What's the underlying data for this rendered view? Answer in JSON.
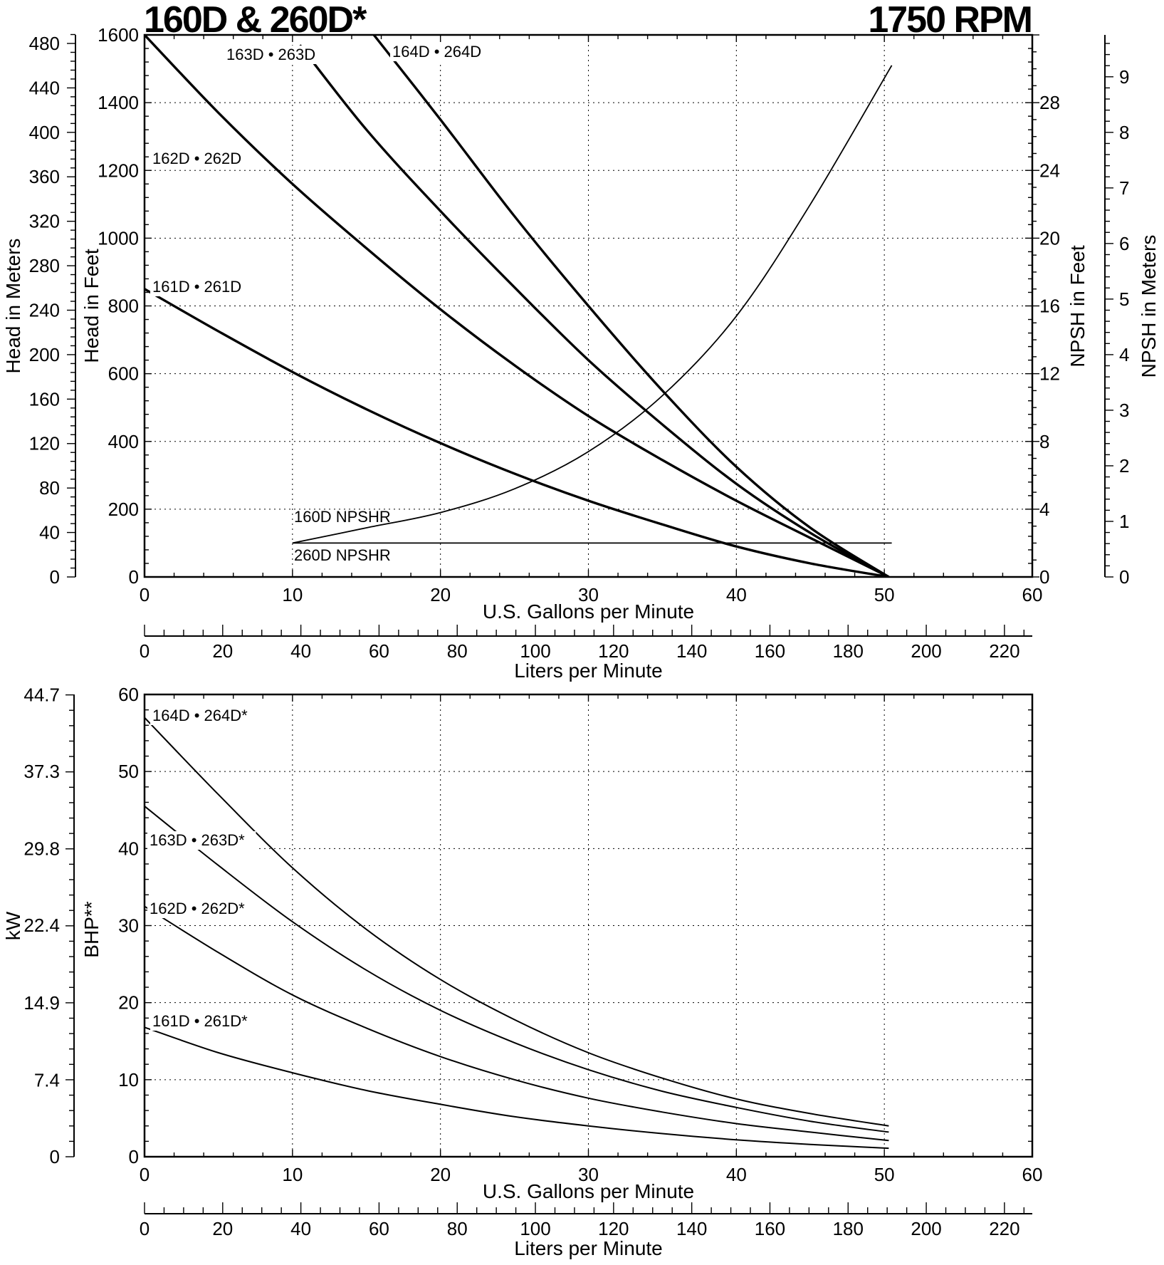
{
  "header": {
    "title": "160D & 260D*",
    "speed": "1750 RPM"
  },
  "chart_data": [
    {
      "type": "line",
      "panel": "head",
      "xlabel": "U.S. Gallons per Minute",
      "xlim": [
        0,
        60
      ],
      "x_ticks": [
        "0",
        "10",
        "20",
        "30",
        "40",
        "50",
        "60"
      ],
      "secondary_xlabel": "Liters per Minute",
      "secondary_x_ticks": [
        "0",
        "20",
        "40",
        "60",
        "80",
        "100",
        "120",
        "140",
        "160",
        "180",
        "200",
        "220"
      ],
      "ylabel": "Head in Feet",
      "ylim": [
        0,
        1600
      ],
      "y_ticks": [
        "0",
        "200",
        "400",
        "600",
        "800",
        "1000",
        "1200",
        "1400",
        "1600"
      ],
      "ylabel_meters": "Head in Meters",
      "y_ticks_meters": [
        "0",
        "40",
        "80",
        "120",
        "160",
        "200",
        "240",
        "280",
        "320",
        "360",
        "400",
        "440",
        "480"
      ],
      "ylabel_npsh_feet": "NPSH in Feet",
      "npsh_feet_ticks": [
        "0",
        "4",
        "8",
        "12",
        "16",
        "20",
        "24",
        "28"
      ],
      "ylabel_npsh_meters": "NPSH in Meters",
      "npsh_meter_ticks": [
        "0",
        "1",
        "2",
        "3",
        "4",
        "5",
        "6",
        "7",
        "8",
        "9"
      ],
      "grid": true,
      "series": [
        {
          "name": "161D • 261D",
          "x": [
            0,
            5,
            10,
            15,
            20,
            25,
            30,
            35,
            40,
            45,
            50.3
          ],
          "y": [
            850,
            725,
            605,
            495,
            395,
            305,
            225,
            155,
            90,
            40,
            0
          ]
        },
        {
          "name": "162D • 262D",
          "x": [
            0,
            5,
            10,
            15,
            20,
            25,
            30,
            35,
            40,
            45,
            50.3
          ],
          "y": [
            1600,
            1370,
            1160,
            970,
            790,
            625,
            475,
            345,
            225,
            115,
            0
          ]
        },
        {
          "name": "163D • 263D",
          "x": [
            10.5,
            15,
            20,
            25,
            30,
            35,
            40,
            45,
            50.3
          ],
          "y": [
            1570,
            1320,
            1080,
            855,
            640,
            450,
            275,
            130,
            0
          ]
        },
        {
          "name": "164D • 264D",
          "x": [
            15.5,
            20,
            25,
            30,
            35,
            40,
            45,
            50.3
          ],
          "y": [
            1600,
            1350,
            1065,
            800,
            550,
            325,
            145,
            0
          ]
        }
      ],
      "npshr": [
        {
          "name": "160D NPSHR",
          "x": [
            10,
            15,
            20,
            25,
            30,
            35,
            40,
            45,
            50.5
          ],
          "npsh_ft": [
            2,
            2.9,
            3.8,
            5.2,
            7.4,
            10.7,
            15.4,
            22.0,
            30.2
          ]
        },
        {
          "name": "260D NPSHR",
          "x": [
            10,
            50.5
          ],
          "npsh_ft": [
            2,
            2
          ]
        }
      ]
    },
    {
      "type": "line",
      "panel": "power",
      "xlabel": "U.S. Gallons per Minute",
      "xlim": [
        0,
        60
      ],
      "x_ticks": [
        "0",
        "10",
        "20",
        "30",
        "40",
        "50",
        "60"
      ],
      "secondary_xlabel": "Liters per Minute",
      "secondary_x_ticks": [
        "0",
        "20",
        "40",
        "60",
        "80",
        "100",
        "120",
        "140",
        "160",
        "180",
        "200",
        "220"
      ],
      "ylabel": "BHP**",
      "ylim": [
        0,
        60
      ],
      "y_ticks": [
        "0",
        "10",
        "20",
        "30",
        "40",
        "50",
        "60"
      ],
      "ylabel_kw": "kW",
      "kw_ticks": [
        "0",
        "7.4",
        "14.9",
        "22.4",
        "29.8",
        "37.3",
        "44.7"
      ],
      "grid": true,
      "series": [
        {
          "name": "161D • 261D*",
          "x": [
            0,
            5,
            10,
            15,
            20,
            25,
            30,
            35,
            40,
            45,
            50.3
          ],
          "y": [
            16.8,
            13.5,
            10.9,
            8.6,
            6.8,
            5.2,
            4.0,
            3.0,
            2.2,
            1.6,
            1.1
          ]
        },
        {
          "name": "162D • 262D*",
          "x": [
            0,
            5,
            10,
            15,
            20,
            25,
            30,
            35,
            40,
            45,
            50.3
          ],
          "y": [
            32.5,
            26.5,
            21.0,
            16.7,
            13.0,
            10.0,
            7.6,
            5.8,
            4.3,
            3.2,
            2.1
          ]
        },
        {
          "name": "163D • 263D*",
          "x": [
            0,
            5,
            10,
            15,
            20,
            25,
            30,
            35,
            40,
            45,
            50.3
          ],
          "y": [
            45.5,
            37.8,
            30.5,
            24.2,
            19.0,
            14.8,
            11.3,
            8.5,
            6.4,
            4.6,
            3.2
          ]
        },
        {
          "name": "164D • 264D*",
          "x": [
            0,
            5,
            10,
            15,
            20,
            25,
            30,
            35,
            40,
            45,
            50.3
          ],
          "y": [
            57.0,
            47.0,
            37.5,
            29.5,
            23.0,
            17.8,
            13.5,
            10.2,
            7.5,
            5.6,
            4.0
          ]
        }
      ]
    }
  ]
}
